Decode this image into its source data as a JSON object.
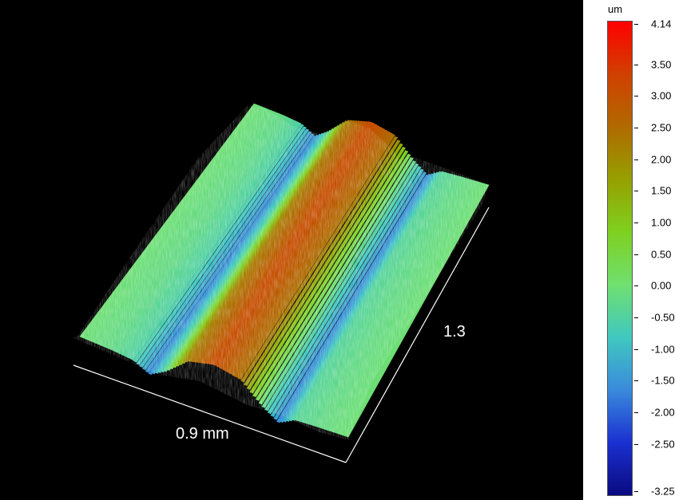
{
  "chart_data": {
    "type": "3d-surface",
    "title": "",
    "x_length_label": "0.9 mm",
    "y_length_label": "1.3",
    "colorbar": {
      "unit": "um",
      "min": -3.25,
      "max": 4.14,
      "ticks": [
        "4.14",
        "3.50",
        "3.00",
        "2.50",
        "2.00",
        "1.50",
        "1.00",
        "0.50",
        "0.00",
        "-0.50",
        "-1.00",
        "-1.50",
        "-2.00",
        "-2.50",
        "-3.25"
      ],
      "tick_values": [
        4.14,
        3.5,
        3.0,
        2.5,
        2.0,
        1.5,
        1.0,
        0.5,
        0.0,
        -0.5,
        -1.0,
        -1.5,
        -2.0,
        -2.5,
        -3.25
      ],
      "colors": [
        "#ff0000",
        "#d04000",
        "#b06a00",
        "#96a000",
        "#7fd020",
        "#70e070",
        "#40c8c0",
        "#3a8adc",
        "#1a30d0",
        "#0a0a80"
      ]
    },
    "surface_profile": {
      "x_fraction": [
        0.0,
        0.12,
        0.2,
        0.26,
        0.32,
        0.4,
        0.5,
        0.6,
        0.68,
        0.74,
        0.8,
        0.88,
        1.0
      ],
      "height_um": [
        0.0,
        -0.2,
        -0.5,
        -1.6,
        -0.3,
        2.2,
        3.1,
        2.4,
        -0.2,
        -1.6,
        -0.4,
        -0.2,
        0.0
      ]
    }
  }
}
